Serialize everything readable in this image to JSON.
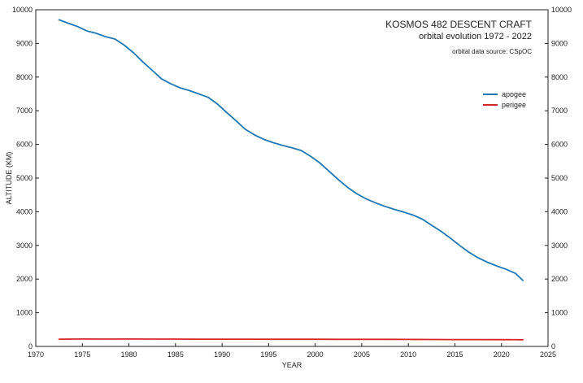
{
  "chart_data": {
    "type": "line",
    "title": "KOSMOS 482 DESCENT CRAFT",
    "subtitle": "orbital evolution 1972 - 2022",
    "note": "orbital data source:  CSpOC",
    "xlabel": "YEAR",
    "ylabel": "ALTITUDE (KM)",
    "xlim": [
      1970,
      2025
    ],
    "ylim": [
      0,
      10000
    ],
    "x_ticks": [
      1970,
      1975,
      1980,
      1985,
      1990,
      1995,
      2000,
      2005,
      2010,
      2015,
      2020,
      2025
    ],
    "y_ticks": [
      0,
      1000,
      2000,
      3000,
      4000,
      5000,
      6000,
      7000,
      8000,
      9000,
      10000
    ],
    "grid": false,
    "legend_position": "right",
    "series": [
      {
        "name": "apogee",
        "color": "#1f77b4",
        "x": [
          1972.5,
          1973.5,
          1974.5,
          1975.5,
          1976.5,
          1977.5,
          1978.5,
          1979.5,
          1980.5,
          1981.5,
          1982.5,
          1983.5,
          1984.5,
          1985.5,
          1986.5,
          1987.5,
          1988.5,
          1989.5,
          1990.5,
          1991.5,
          1992.5,
          1993.5,
          1994.5,
          1995.5,
          1996.5,
          1997.5,
          1998.5,
          1999.5,
          2000.5,
          2001.5,
          2002.5,
          2003.5,
          2004.5,
          2005.5,
          2006.5,
          2007.5,
          2008.5,
          2009.5,
          2010.5,
          2011.5,
          2012.5,
          2013.5,
          2014.5,
          2015.5,
          2016.5,
          2017.5,
          2018.5,
          2019.5,
          2020.5,
          2021.5,
          2022.3
        ],
        "values": [
          9700,
          9600,
          9500,
          9370,
          9300,
          9200,
          9130,
          8950,
          8720,
          8450,
          8200,
          7950,
          7800,
          7680,
          7600,
          7500,
          7400,
          7200,
          6950,
          6700,
          6450,
          6280,
          6150,
          6050,
          5970,
          5900,
          5820,
          5650,
          5450,
          5200,
          4950,
          4720,
          4530,
          4380,
          4260,
          4160,
          4070,
          3990,
          3900,
          3780,
          3600,
          3420,
          3220,
          3000,
          2800,
          2630,
          2500,
          2390,
          2290,
          2170,
          1960
        ]
      },
      {
        "name": "perigee",
        "color": "#d62728",
        "x": [
          1972.5,
          1975,
          1977.5,
          1980,
          1982.5,
          1985,
          1987.5,
          1990,
          1992.5,
          1995,
          1997.5,
          2000,
          2002.5,
          2005,
          2007.5,
          2010,
          2012.5,
          2015,
          2017.5,
          2020,
          2022.3
        ],
        "values": [
          215,
          220,
          218,
          219,
          217,
          218,
          216,
          215,
          214,
          213,
          213,
          212,
          211,
          210,
          209,
          208,
          206,
          204,
          202,
          200,
          198
        ]
      }
    ]
  }
}
